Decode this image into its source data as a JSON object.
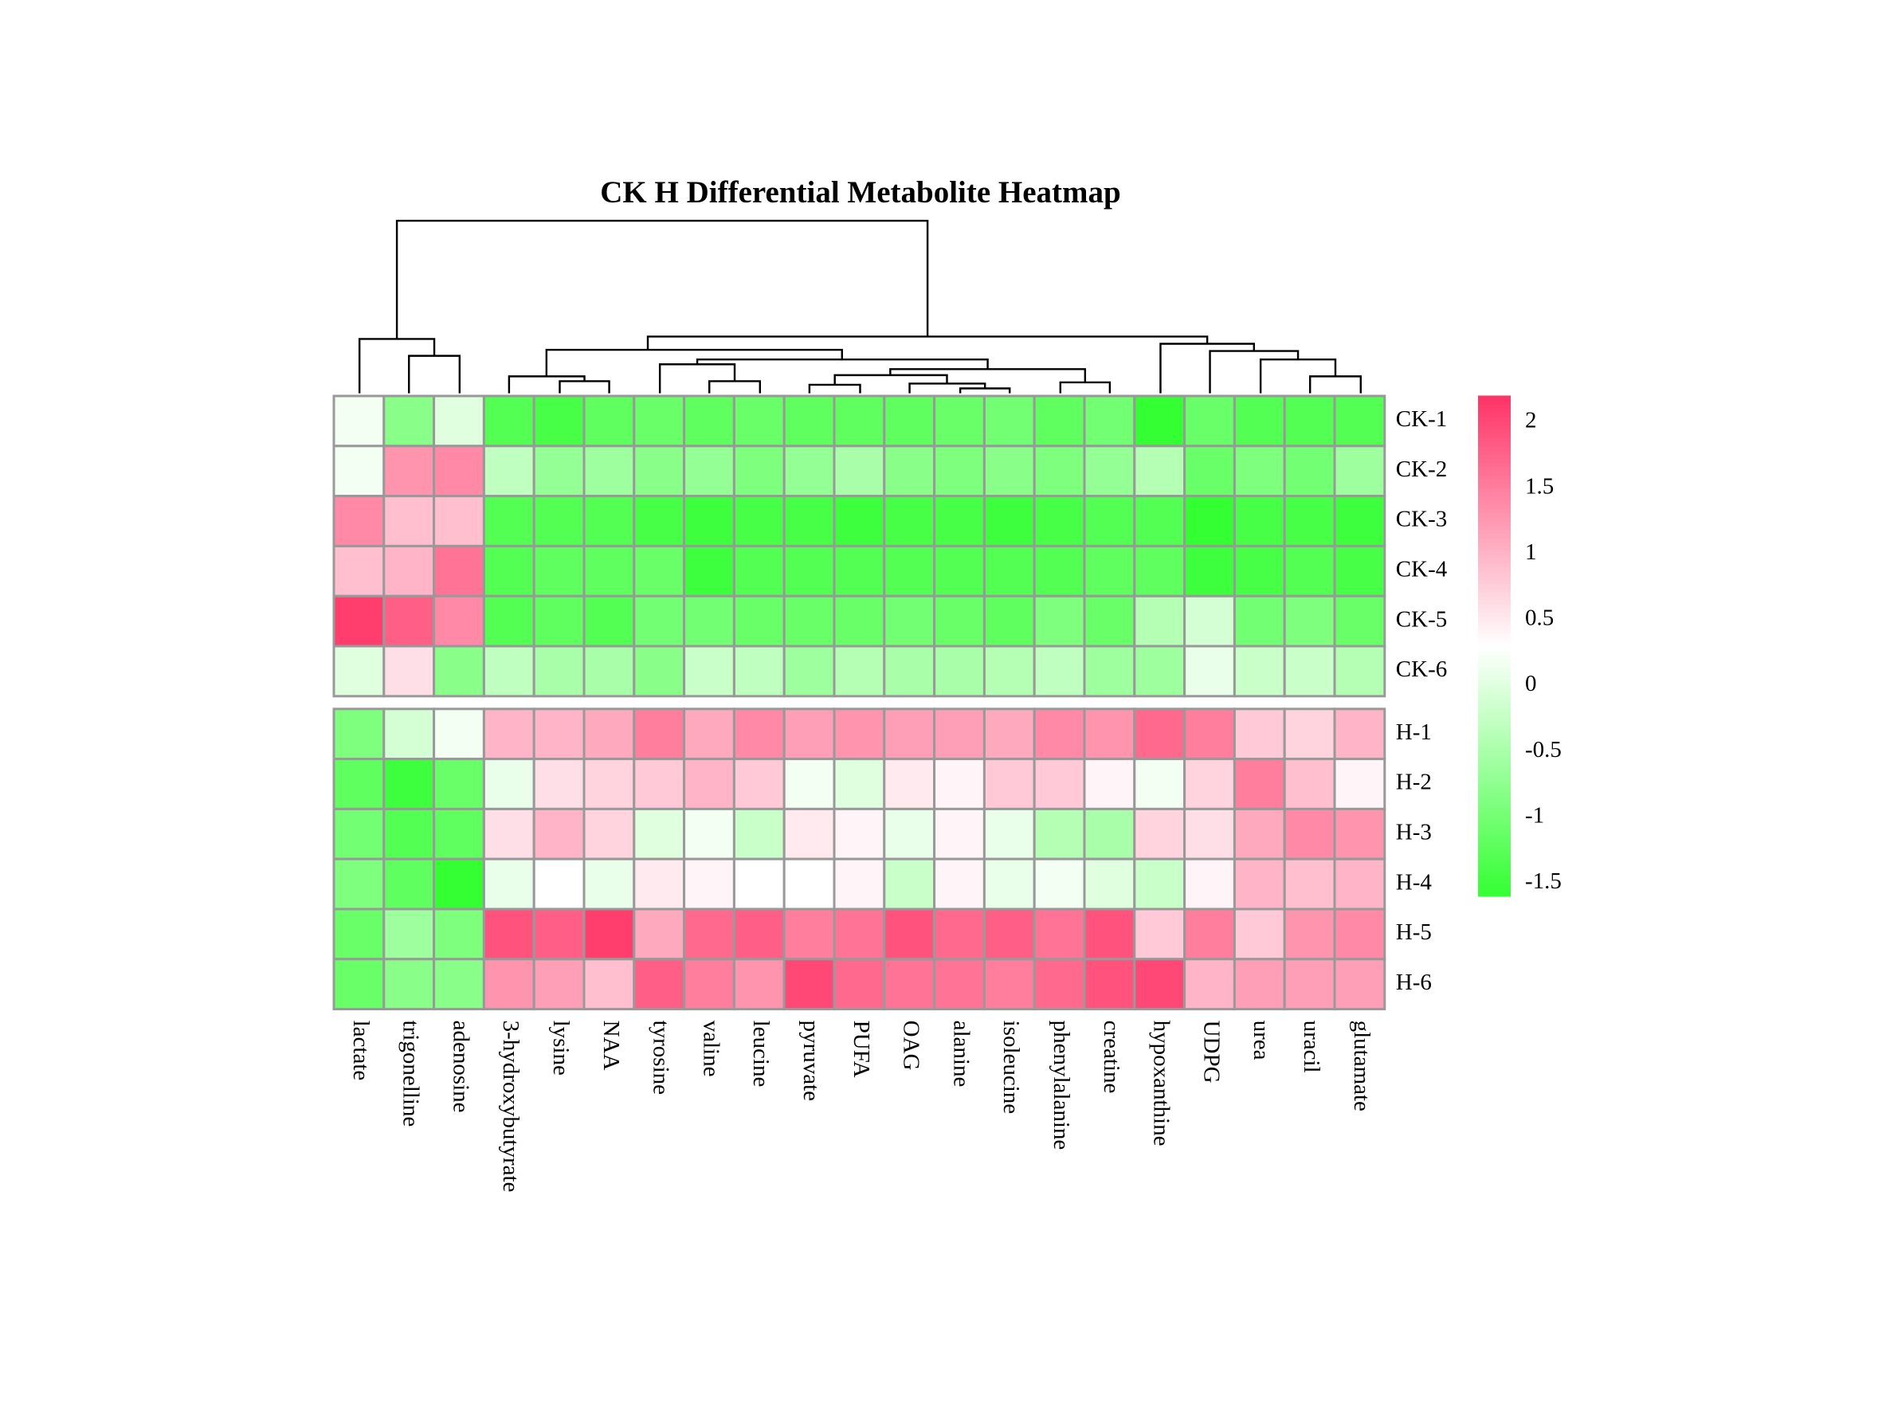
{
  "chart_data": {
    "type": "heatmap",
    "title": "CK H Differential Metabolite Heatmap",
    "columns": [
      "lactate",
      "trigonelline",
      "adenosine",
      "3-hydroxybutyrate",
      "lysine",
      "NAA",
      "tyrosine",
      "valine",
      "leucine",
      "pyruvate",
      "PUFA",
      "OAG",
      "alanine",
      "isoleucine",
      "phenylalanine",
      "creatine",
      "hypoxanthine",
      "UDPG",
      "urea",
      "uracil",
      "glutamate"
    ],
    "rows": [
      "CK-1",
      "CK-2",
      "CK-3",
      "CK-4",
      "CK-5",
      "CK-6",
      "H-1",
      "H-2",
      "H-3",
      "H-4",
      "H-5",
      "H-6"
    ],
    "values": [
      [
        0.2,
        -0.8,
        0.0,
        -1.3,
        -1.4,
        -1.2,
        -1.1,
        -1.2,
        -1.1,
        -1.2,
        -1.2,
        -1.2,
        -1.1,
        -1.0,
        -1.2,
        -1.0,
        -1.6,
        -1.1,
        -1.3,
        -1.3,
        -1.3
      ],
      [
        0.2,
        1.3,
        1.4,
        -0.3,
        -0.7,
        -0.6,
        -0.8,
        -0.7,
        -0.9,
        -0.7,
        -0.5,
        -0.8,
        -0.9,
        -0.8,
        -0.9,
        -0.7,
        -0.4,
        -1.1,
        -0.9,
        -1.0,
        -0.6
      ],
      [
        1.4,
        0.9,
        0.9,
        -1.3,
        -1.3,
        -1.3,
        -1.4,
        -1.5,
        -1.4,
        -1.4,
        -1.5,
        -1.4,
        -1.4,
        -1.5,
        -1.4,
        -1.3,
        -1.3,
        -1.6,
        -1.4,
        -1.4,
        -1.5
      ],
      [
        0.9,
        1.0,
        1.6,
        -1.3,
        -1.2,
        -1.2,
        -1.1,
        -1.5,
        -1.3,
        -1.3,
        -1.3,
        -1.3,
        -1.3,
        -1.3,
        -1.3,
        -1.2,
        -1.2,
        -1.5,
        -1.4,
        -1.3,
        -1.4
      ],
      [
        2.1,
        1.8,
        1.4,
        -1.3,
        -1.2,
        -1.3,
        -1.0,
        -1.0,
        -1.1,
        -1.1,
        -1.1,
        -1.0,
        -1.1,
        -1.2,
        -0.9,
        -1.1,
        -0.4,
        -0.1,
        -1.0,
        -0.9,
        -1.1
      ],
      [
        0.0,
        0.6,
        -0.8,
        -0.3,
        -0.5,
        -0.5,
        -0.8,
        -0.2,
        -0.3,
        -0.6,
        -0.4,
        -0.5,
        -0.5,
        -0.4,
        -0.3,
        -0.6,
        -0.6,
        0.1,
        -0.2,
        -0.2,
        -0.4
      ],
      [
        -0.9,
        -0.1,
        0.2,
        1.0,
        1.0,
        1.1,
        1.5,
        1.1,
        1.4,
        1.2,
        1.3,
        1.2,
        1.2,
        1.1,
        1.4,
        1.3,
        1.7,
        1.5,
        0.8,
        0.7,
        1.0
      ],
      [
        -1.2,
        -1.5,
        -1.1,
        0.1,
        0.6,
        0.7,
        0.8,
        1.0,
        0.8,
        0.2,
        0.0,
        0.5,
        0.4,
        0.8,
        0.8,
        0.4,
        0.2,
        0.7,
        1.5,
        0.9,
        0.4
      ],
      [
        -1.0,
        -1.3,
        -1.2,
        0.6,
        1.0,
        0.7,
        0.0,
        0.2,
        -0.2,
        0.5,
        0.4,
        0.1,
        0.4,
        0.1,
        -0.4,
        -0.5,
        0.7,
        0.6,
        1.1,
        1.4,
        1.3
      ],
      [
        -0.9,
        -1.2,
        -1.6,
        0.1,
        0.3,
        0.1,
        0.5,
        0.4,
        0.3,
        0.3,
        0.4,
        -0.2,
        0.4,
        0.1,
        0.2,
        0.0,
        -0.2,
        0.4,
        1.0,
        0.9,
        1.0
      ],
      [
        -1.1,
        -0.6,
        -0.9,
        1.9,
        1.8,
        2.1,
        1.1,
        1.7,
        1.8,
        1.5,
        1.6,
        1.9,
        1.7,
        1.8,
        1.6,
        1.9,
        0.8,
        1.5,
        0.8,
        1.3,
        1.4
      ],
      [
        -1.1,
        -0.8,
        -0.8,
        1.3,
        1.2,
        0.9,
        1.8,
        1.5,
        1.3,
        2.0,
        1.7,
        1.6,
        1.6,
        1.5,
        1.7,
        1.9,
        2.0,
        1.0,
        1.2,
        1.2,
        1.2
      ]
    ],
    "zlim": [
      -1.6,
      2.2
    ],
    "colors": [
      "#33ff33",
      "#ffffff",
      "#ff3366"
    ],
    "colorbar_ticks": [
      -1.5,
      -1,
      -0.5,
      0,
      0.5,
      1,
      1.5,
      2
    ],
    "cell_border": "#999999"
  }
}
